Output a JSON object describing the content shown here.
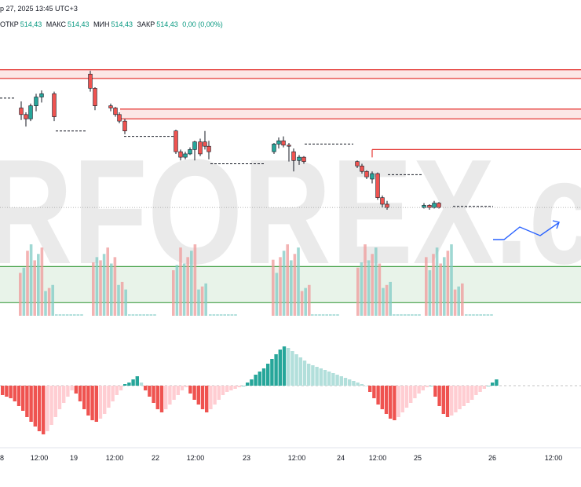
{
  "header": {
    "date_line": "р 27, 2025 13:45 UTC+3",
    "ohlc": [
      {
        "label": "ОТКР",
        "value": "514,43"
      },
      {
        "label": "МАКС",
        "value": "514,43"
      },
      {
        "label": "МИН",
        "value": "514,43"
      },
      {
        "label": "ЗАКР",
        "value": "514,43"
      }
    ],
    "change": "0,00 (0,00%)"
  },
  "watermark": "RFOREX.c",
  "colors": {
    "up": "#26a69a",
    "down": "#ef5350",
    "up_light": "#b2dfdb",
    "down_light": "#ffcdd2",
    "resistance": "#e53935",
    "support": "#43a047",
    "forecast": "#2962ff"
  },
  "chart_data": {
    "type": "candlestick",
    "price_scale": {
      "min": 501,
      "max": 527
    },
    "x_axis": {
      "labels": [
        "8",
        "12:00",
        "19",
        "12:00",
        "22",
        "12:00",
        "23",
        "12:00",
        "24",
        "12:00",
        "25",
        "26",
        "12:00"
      ]
    },
    "resistance_zones": [
      [
        522.7,
        523.5
      ],
      [
        519.0,
        519.9
      ]
    ],
    "resistance_lines": [
      516.2
    ],
    "support_zone": [
      502.2,
      505.5
    ],
    "candles": [
      {
        "o": 520.0,
        "h": 520.6,
        "l": 518.9,
        "c": 519.4
      },
      {
        "o": 519.4,
        "h": 519.6,
        "l": 518.3,
        "c": 519.0
      },
      {
        "o": 519.0,
        "h": 520.4,
        "l": 518.8,
        "c": 520.2
      },
      {
        "o": 520.2,
        "h": 521.3,
        "l": 519.7,
        "c": 521.0
      },
      {
        "o": 521.0,
        "h": 521.6,
        "l": 520.5,
        "c": 521.3
      },
      {
        "o": 521.3,
        "h": 521.5,
        "l": 518.8,
        "c": 519.2
      },
      {
        "o": 523.1,
        "h": 523.4,
        "l": 521.5,
        "c": 521.8
      },
      {
        "o": 521.8,
        "h": 521.9,
        "l": 519.8,
        "c": 520.2
      },
      {
        "o": 520.2,
        "h": 520.4,
        "l": 519.7,
        "c": 520.0
      },
      {
        "o": 520.0,
        "h": 520.1,
        "l": 519.2,
        "c": 519.4
      },
      {
        "o": 519.4,
        "h": 519.6,
        "l": 518.6,
        "c": 518.8
      },
      {
        "o": 518.8,
        "h": 519.0,
        "l": 517.6,
        "c": 517.9
      },
      {
        "o": 517.9,
        "h": 518.0,
        "l": 515.8,
        "c": 516.0
      },
      {
        "o": 516.0,
        "h": 516.2,
        "l": 515.2,
        "c": 515.5
      },
      {
        "o": 515.5,
        "h": 516.0,
        "l": 515.3,
        "c": 515.8
      },
      {
        "o": 515.8,
        "h": 516.4,
        "l": 515.7,
        "c": 516.2
      },
      {
        "o": 516.2,
        "h": 517.0,
        "l": 515.2,
        "c": 516.9
      },
      {
        "o": 516.9,
        "h": 517.2,
        "l": 515.6,
        "c": 515.8
      },
      {
        "o": 516.9,
        "h": 517.9,
        "l": 516.2,
        "c": 516.5
      },
      {
        "o": 516.5,
        "h": 517.0,
        "l": 515.3,
        "c": 516.0
      },
      {
        "o": 516.0,
        "h": 516.8,
        "l": 515.8,
        "c": 516.7
      },
      {
        "o": 516.7,
        "h": 517.3,
        "l": 516.3,
        "c": 517.0
      },
      {
        "o": 517.0,
        "h": 517.4,
        "l": 516.4,
        "c": 516.6
      },
      {
        "o": 516.6,
        "h": 516.8,
        "l": 515.1,
        "c": 516.5
      },
      {
        "o": 516.0,
        "h": 516.3,
        "l": 514.2,
        "c": 515.2
      },
      {
        "o": 515.2,
        "h": 515.7,
        "l": 514.8,
        "c": 515.5
      },
      {
        "o": 515.5,
        "h": 515.6,
        "l": 514.9,
        "c": 515.1
      },
      {
        "o": 515.1,
        "h": 515.2,
        "l": 514.5,
        "c": 514.7
      },
      {
        "o": 514.7,
        "h": 514.9,
        "l": 514.0,
        "c": 514.2
      },
      {
        "o": 514.2,
        "h": 514.3,
        "l": 513.5,
        "c": 513.7
      },
      {
        "o": 513.5,
        "h": 514.2,
        "l": 513.1,
        "c": 514.0
      },
      {
        "o": 514.0,
        "h": 514.1,
        "l": 511.6,
        "c": 511.8
      },
      {
        "o": 511.8,
        "h": 512.0,
        "l": 510.9,
        "c": 511.2
      },
      {
        "o": 511.2,
        "h": 511.5,
        "l": 510.7,
        "c": 510.9
      },
      {
        "o": 510.9,
        "h": 511.3,
        "l": 510.8,
        "c": 511.1
      },
      {
        "o": 511.1,
        "h": 511.2,
        "l": 510.7,
        "c": 510.9
      },
      {
        "o": 510.9,
        "h": 511.5,
        "l": 510.8,
        "c": 511.3
      },
      {
        "o": 511.3,
        "h": 511.4,
        "l": 510.8,
        "c": 510.9
      }
    ],
    "volume_pattern": [
      0,
      0,
      0,
      1,
      1,
      1,
      1,
      0,
      0,
      0,
      0,
      0,
      1,
      1,
      1,
      1,
      1,
      0,
      0,
      0,
      0,
      0,
      1,
      1,
      1,
      1,
      1,
      0,
      0,
      0,
      0,
      0,
      1,
      1,
      1,
      1,
      1,
      0,
      0,
      0,
      0,
      0,
      1,
      1,
      1,
      1,
      1,
      0,
      0,
      0,
      0,
      0,
      1,
      1,
      1,
      1,
      1,
      1,
      0,
      0,
      0
    ],
    "histogram": [
      -12,
      -14,
      -16,
      -20,
      -26,
      -32,
      -40,
      -46,
      -52,
      -58,
      -62,
      -58,
      -50,
      -40,
      -30,
      -22,
      -14,
      -6,
      -10,
      -20,
      -30,
      -38,
      -44,
      -46,
      -42,
      -36,
      -28,
      -20,
      -12,
      -6,
      2,
      4,
      8,
      12,
      4,
      -6,
      -14,
      -22,
      -30,
      -34,
      -30,
      -24,
      -18,
      -12,
      -6,
      -2,
      -10,
      -18,
      -24,
      -30,
      -34,
      -30,
      -24,
      -18,
      -12,
      -8,
      -6,
      -4,
      -2,
      0,
      4,
      8,
      14,
      18,
      22,
      28,
      34,
      40,
      46,
      50,
      48,
      44,
      40,
      36,
      32,
      28,
      26,
      24,
      22,
      20,
      18,
      16,
      14,
      12,
      10,
      8,
      6,
      4,
      2,
      0,
      -8,
      -16,
      -24,
      -30,
      -36,
      -42,
      -44,
      -40,
      -34,
      -28,
      -22,
      -16,
      -10,
      -6,
      -2,
      0,
      -14,
      -26,
      -36,
      -40,
      -38,
      -34,
      -30,
      -26,
      -22,
      -18,
      -12,
      -8,
      -4,
      0,
      4,
      8,
      12
    ]
  }
}
